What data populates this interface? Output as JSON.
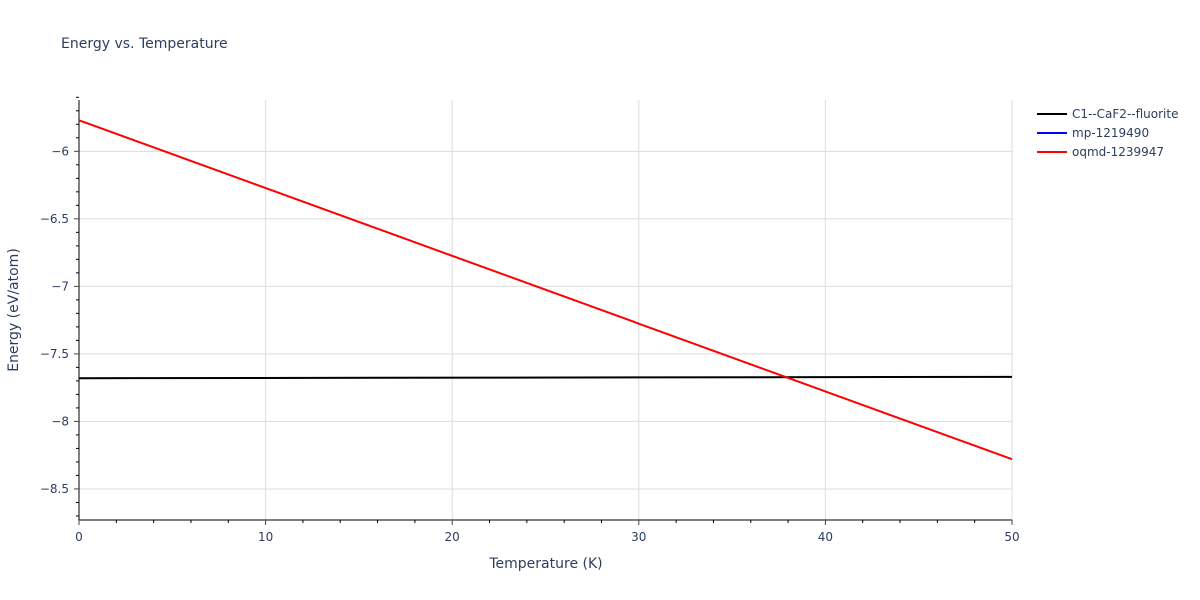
{
  "chart_data": {
    "type": "line",
    "title": "Energy vs. Temperature",
    "xlabel": "Temperature (K)",
    "ylabel": "Energy (eV/atom)",
    "xlim": [
      0,
      50
    ],
    "ylim": [
      -8.73,
      -5.62
    ],
    "x_ticks": [
      0,
      10,
      20,
      30,
      40,
      50
    ],
    "y_ticks": [
      -6,
      -6.5,
      -7,
      -7.5,
      -8,
      -8.5
    ],
    "y_tick_labels": [
      "−6",
      "−6.5",
      "−7",
      "−7.5",
      "−8",
      "−8.5"
    ],
    "grid": true,
    "legend_position": "right-top",
    "series": [
      {
        "name": "C1--CaF2--fluorite",
        "color": "#000000",
        "x": [
          0,
          50
        ],
        "y": [
          -7.68,
          -7.67
        ]
      },
      {
        "name": "mp-1219490",
        "color": "#0000ff",
        "x": [],
        "y": []
      },
      {
        "name": "oqmd-1239947",
        "color": "#ff0000",
        "x": [
          0,
          50
        ],
        "y": [
          -5.77,
          -8.28
        ]
      }
    ]
  }
}
